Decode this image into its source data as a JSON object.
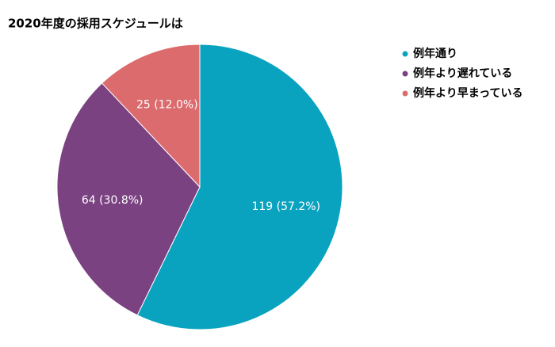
{
  "chart_data": {
    "type": "pie",
    "title": "2020年度の採用スケジュールは",
    "categories": [
      "例年通り",
      "例年より遅れている",
      "例年より早まっている"
    ],
    "values": [
      119,
      64,
      25
    ],
    "value_labels": [
      "119 (57.2%)",
      "64 (30.8%)",
      "25 (12.0%)"
    ],
    "colors": [
      "#0aa3bf",
      "#7b4282",
      "#dc6b6e"
    ],
    "legend": "right"
  }
}
